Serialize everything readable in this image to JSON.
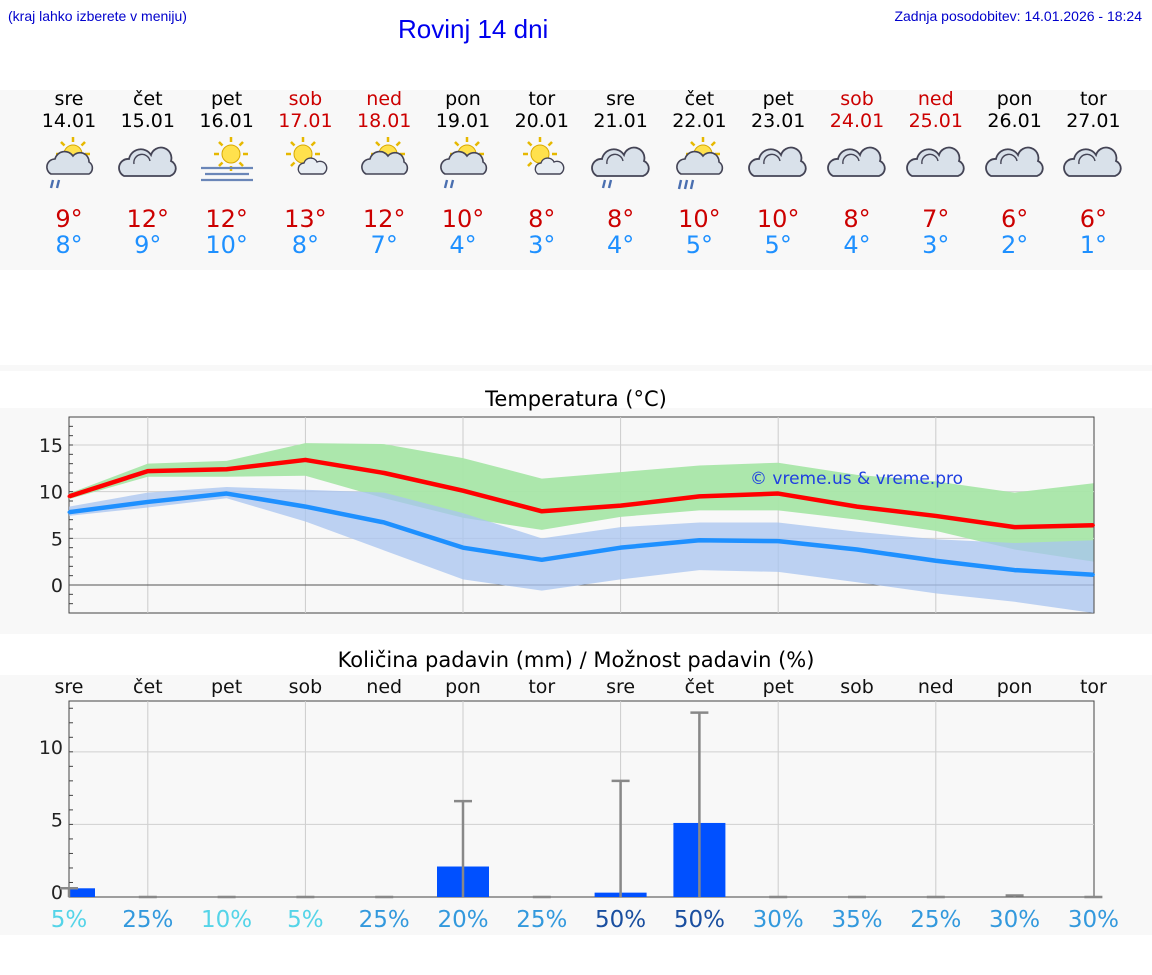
{
  "header": {
    "menu_hint": "(kraj lahko izberete v meniju)",
    "title": "Rovinj 14 dni",
    "updated": "Zadnja posodobitev: 14.01.2026 - 18:24"
  },
  "days": [
    {
      "name": "sre",
      "date": "14.01",
      "weekend": false,
      "icon": "sun-cloud-rain-icon",
      "tmax": "9°",
      "tmin": "8°"
    },
    {
      "name": "čet",
      "date": "15.01",
      "weekend": false,
      "icon": "cloudy-icon",
      "tmax": "12°",
      "tmin": "9°"
    },
    {
      "name": "pet",
      "date": "16.01",
      "weekend": false,
      "icon": "sun-fog-icon",
      "tmax": "12°",
      "tmin": "10°"
    },
    {
      "name": "sob",
      "date": "17.01",
      "weekend": true,
      "icon": "sun-small-cloud-icon",
      "tmax": "13°",
      "tmin": "8°"
    },
    {
      "name": "ned",
      "date": "18.01",
      "weekend": true,
      "icon": "sun-cloud-icon",
      "tmax": "12°",
      "tmin": "7°"
    },
    {
      "name": "pon",
      "date": "19.01",
      "weekend": false,
      "icon": "sun-cloud-rain-icon",
      "tmax": "10°",
      "tmin": "4°"
    },
    {
      "name": "tor",
      "date": "20.01",
      "weekend": false,
      "icon": "sun-small-cloud-icon",
      "tmax": "8°",
      "tmin": "3°"
    },
    {
      "name": "sre",
      "date": "21.01",
      "weekend": false,
      "icon": "cloud-rain-icon",
      "tmax": "8°",
      "tmin": "4°"
    },
    {
      "name": "čet",
      "date": "22.01",
      "weekend": false,
      "icon": "sun-cloud-heavy-rain-icon",
      "tmax": "10°",
      "tmin": "5°"
    },
    {
      "name": "pet",
      "date": "23.01",
      "weekend": false,
      "icon": "cloudy-icon",
      "tmax": "10°",
      "tmin": "5°"
    },
    {
      "name": "sob",
      "date": "24.01",
      "weekend": true,
      "icon": "cloudy-icon",
      "tmax": "8°",
      "tmin": "4°"
    },
    {
      "name": "ned",
      "date": "25.01",
      "weekend": true,
      "icon": "cloudy-icon",
      "tmax": "7°",
      "tmin": "3°"
    },
    {
      "name": "pon",
      "date": "26.01",
      "weekend": false,
      "icon": "cloudy-icon",
      "tmax": "6°",
      "tmin": "2°"
    },
    {
      "name": "tor",
      "date": "27.01",
      "weekend": false,
      "icon": "cloudy-icon",
      "tmax": "6°",
      "tmin": "1°"
    }
  ],
  "colors": {
    "max_line": "#ff0000",
    "min_line": "#1e90ff",
    "max_band": "#a8e6a8",
    "min_band": "#a8c4f0",
    "overlap_band": "#7fc4a8",
    "bar": "#0050ff",
    "error_bar": "#888888",
    "prob_low": "#55d4e8",
    "prob_mid": "#3399dd",
    "prob_high": "#1a4fa0"
  },
  "chart_data": [
    {
      "type": "line",
      "title": "Temperatura (°C)",
      "watermark": "© vreme.us & vreme.pro",
      "x": [
        0,
        1,
        2,
        3,
        4,
        5,
        6,
        7,
        8,
        9,
        10,
        11,
        12,
        13
      ],
      "ylim": [
        -3,
        18
      ],
      "yticks": [
        0,
        5,
        10,
        15
      ],
      "series": [
        {
          "name": "max",
          "values": [
            9.5,
            12.2,
            12.4,
            13.4,
            12.0,
            10.1,
            7.9,
            8.5,
            9.5,
            9.8,
            8.4,
            7.4,
            6.2,
            6.4
          ]
        },
        {
          "name": "min",
          "values": [
            7.8,
            8.9,
            9.8,
            8.4,
            6.7,
            4.0,
            2.7,
            4.0,
            4.8,
            4.7,
            3.8,
            2.6,
            1.6,
            1.1
          ]
        }
      ],
      "bands": [
        {
          "name": "max range",
          "upper": [
            9.8,
            13.0,
            13.3,
            15.2,
            15.1,
            13.6,
            11.4,
            12.1,
            12.8,
            13.1,
            11.8,
            11.1,
            9.9,
            10.9
          ],
          "lower": [
            9.2,
            11.6,
            11.6,
            11.7,
            9.3,
            7.2,
            5.9,
            7.3,
            8.0,
            8.0,
            7.0,
            5.8,
            3.8,
            2.5
          ]
        },
        {
          "name": "min range",
          "upper": [
            8.4,
            9.9,
            10.5,
            10.2,
            9.9,
            7.7,
            5.0,
            6.2,
            6.7,
            6.7,
            5.7,
            4.9,
            4.5,
            4.8
          ],
          "lower": [
            7.4,
            8.3,
            9.3,
            6.8,
            3.7,
            0.6,
            -0.6,
            0.6,
            1.6,
            1.4,
            0.3,
            -0.9,
            -1.8,
            -3.0
          ]
        }
      ]
    },
    {
      "type": "bar",
      "title": "Količina padavin (mm) / Možnost padavin (%)",
      "categories": [
        "sre",
        "čet",
        "pet",
        "sob",
        "ned",
        "pon",
        "tor",
        "sre",
        "čet",
        "pet",
        "sob",
        "ned",
        "pon",
        "tor"
      ],
      "ylim": [
        0,
        13.5
      ],
      "yticks": [
        0,
        5,
        10
      ],
      "values": [
        0.6,
        0,
        0,
        0,
        0,
        2.1,
        0,
        0.3,
        5.1,
        0,
        0,
        0,
        0,
        0
      ],
      "error_max": [
        0.6,
        0,
        0,
        0,
        0,
        6.6,
        0,
        8.0,
        12.7,
        0,
        0,
        0,
        0.1,
        0
      ],
      "probability": [
        "5%",
        "25%",
        "10%",
        "5%",
        "25%",
        "20%",
        "25%",
        "50%",
        "50%",
        "30%",
        "35%",
        "25%",
        "30%",
        "30%"
      ],
      "probability_values": [
        5,
        25,
        10,
        5,
        25,
        20,
        25,
        50,
        50,
        30,
        35,
        25,
        30,
        30
      ]
    }
  ]
}
